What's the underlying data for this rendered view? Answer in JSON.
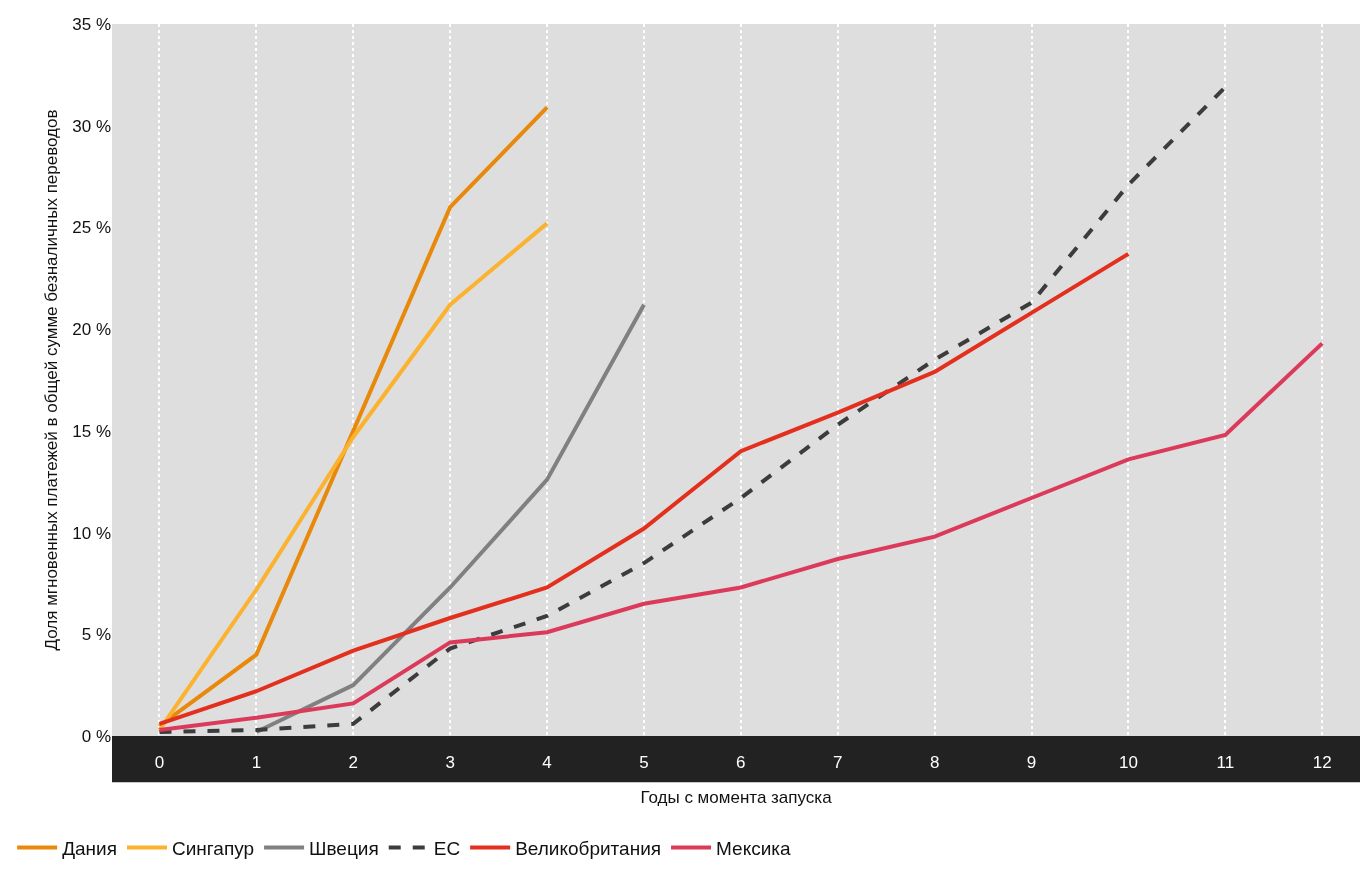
{
  "chart_data": {
    "type": "line",
    "xlabel": "Годы с момента запуска",
    "ylabel": "Доля мгновенных платежей в общей сумме безналичных переводов",
    "xlim": [
      -0.49,
      12.39
    ],
    "xticks": [
      0,
      1,
      2,
      3,
      4,
      5,
      6,
      7,
      8,
      9,
      10,
      11,
      12
    ],
    "ylim": [
      0,
      35
    ],
    "yticks": [
      {
        "value": 0,
        "label": "0 %"
      },
      {
        "value": 5,
        "label": "5 %"
      },
      {
        "value": 10,
        "label": "10 %"
      },
      {
        "value": 15,
        "label": "15 %"
      },
      {
        "value": 20,
        "label": "20 %"
      },
      {
        "value": 25,
        "label": "25 %"
      },
      {
        "value": 30,
        "label": "30 %"
      },
      {
        "value": 35,
        "label": "35 %"
      }
    ],
    "grid": "x",
    "legend": "bottom left",
    "marker": "none",
    "series": [
      {
        "name": "Дания",
        "color": "#e8890c",
        "line_style": "solid",
        "x": [
          0,
          1,
          2,
          3,
          4
        ],
        "values": [
          0.5,
          4.0,
          15.0,
          26.0,
          30.9
        ]
      },
      {
        "name": "Сингапур",
        "color": "#fbb22f",
        "line_style": "solid",
        "x": [
          0,
          1,
          2,
          3,
          4
        ],
        "values": [
          0.3,
          7.2,
          14.7,
          21.2,
          25.2
        ]
      },
      {
        "name": "Швеция",
        "color": "#808080",
        "line_style": "solid",
        "x": [
          1,
          2,
          3,
          4,
          5
        ],
        "values": [
          0.2,
          2.5,
          7.3,
          12.6,
          21.2
        ]
      },
      {
        "name": "ЕС",
        "color": "#3c3c3c",
        "line_style": "dashed",
        "x": [
          0,
          1,
          2,
          3,
          4,
          5,
          6,
          7,
          8,
          9,
          10,
          11
        ],
        "values": [
          0.2,
          0.3,
          0.6,
          4.3,
          5.9,
          8.5,
          11.7,
          15.3,
          18.5,
          21.3,
          27.1,
          31.9
        ]
      },
      {
        "name": "Великобритания",
        "color": "#e3301e",
        "line_style": "solid",
        "x": [
          0,
          1,
          2,
          3,
          4,
          5,
          6,
          7,
          8,
          9,
          10
        ],
        "values": [
          0.6,
          2.2,
          4.2,
          5.8,
          7.3,
          10.2,
          14.0,
          15.9,
          17.9,
          20.8,
          23.7
        ]
      },
      {
        "name": "Мексика",
        "color": "#dc3a5a",
        "line_style": "solid",
        "x": [
          0,
          1,
          2,
          3,
          4,
          5,
          6,
          7,
          8,
          9,
          10,
          11,
          12
        ],
        "values": [
          0.3,
          0.9,
          1.6,
          4.6,
          5.1,
          6.5,
          7.3,
          8.7,
          9.8,
          11.7,
          13.6,
          14.8,
          19.3
        ]
      }
    ]
  }
}
